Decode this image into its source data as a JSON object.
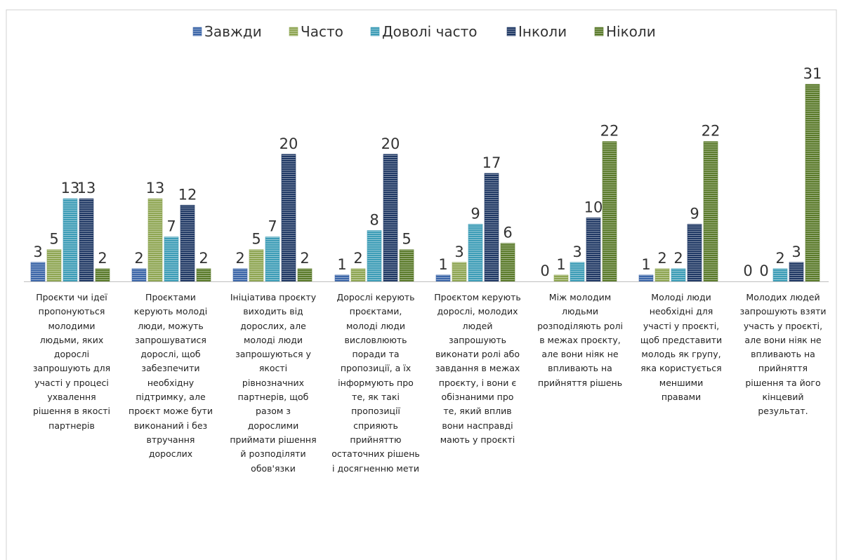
{
  "colors": {
    "axis": "#bfbfbf",
    "frame": "#d0d0d0",
    "label_text": "#333333",
    "series": [
      "#3c66a8",
      "#8ea552",
      "#3c9cb6",
      "#1f3864",
      "#5a7a2a"
    ]
  },
  "chart_data": {
    "type": "bar",
    "title": "",
    "xlabel": "",
    "ylabel": "",
    "ylim": [
      0,
      31
    ],
    "grid": false,
    "legend_position": "top",
    "bar_pattern": "horizontal-stripes",
    "categories": [
      "Проєкти чи ідеї пропонуються молодими людьми, яких дорослі запрошують для участі у процесі ухвалення рішення в якості партнерів",
      "Проєктами керують молоді люди, можуть запрошуватися дорослі, щоб забезпечити необхідну підтримку, але проєкт може бути виконаний і без втручання дорослих",
      "Ініціатива проєкту виходить від дорослих, але молоді люди запрошуються у якості рівнозначних партнерів, щоб разом з дорослими приймати рішення й розподіляти обов'язки",
      "Дорослі керують проєктами, молоді люди висловлюють поради та пропозиції, а їх інформують про те, як такі пропозиції сприяють прийняттю остаточних рішень і досягненню мети",
      "Проєктом керують дорослі, молодих людей запрошують виконати ролі або завдання в межах проєкту, і вони є обізнаними про те, який вплив вони насправді мають у проєкті",
      "Між молодим людьми розподіляють ролі в межах проєкту, але вони ніяк не впливають на прийняття рішень",
      "Молоді люди необхідні для участі у проєкті, щоб представити молодь як групу, яка користується меншими правами",
      "Молодих людей запрошують взяти участь у проєкті, але вони ніяк не впливають на прийняття рішення та його кінцевий результат."
    ],
    "category_lines": [
      [
        "Проєкти чи ідеї",
        "пропонуються",
        "молодими",
        "людьми, яких",
        "дорослі",
        "запрошують для",
        "участі у процесі",
        "ухвалення",
        "рішення в якості",
        "партнерів"
      ],
      [
        "Проєктами",
        "керують молоді",
        "люди, можуть",
        "запрошуватися",
        "дорослі, щоб",
        "забезпечити",
        "необхідну",
        "підтримку, але",
        "проєкт може бути",
        "виконаний і без",
        "втручання",
        "дорослих"
      ],
      [
        "Ініціатива проєкту",
        "виходить від",
        "дорослих, але",
        "молоді люди",
        "запрошуються у",
        "якості",
        "рівнозначних",
        "партнерів, щоб",
        "разом з",
        "дорослими",
        "приймати рішення",
        "й розподіляти",
        "обов'язки"
      ],
      [
        "Дорослі керують",
        "проєктами,",
        "молоді люди",
        "висловлюють",
        "поради та",
        "пропозиції, а їх",
        "інформують про",
        "те, як такі",
        "пропозиції",
        "сприяють",
        "прийняттю",
        "остаточних рішень",
        "і досягненню мети"
      ],
      [
        "Проєктом керують",
        "дорослі, молодих",
        "людей",
        "запрошують",
        "виконати ролі або",
        "завдання в межах",
        "проєкту, і вони є",
        "обізнаними про",
        "те, який вплив",
        "вони насправді",
        "мають у проєкті"
      ],
      [
        "Між молодим",
        "людьми",
        "розподіляють ролі",
        "в межах проєкту,",
        "але вони ніяк не",
        "впливають на",
        "прийняття рішень"
      ],
      [
        "Молоді люди",
        "необхідні для",
        "участі у проєкті,",
        "щоб представити",
        "молодь як групу,",
        "яка користується",
        "меншими",
        "правами"
      ],
      [
        "Молодих людей",
        "запрошують взяти",
        "участь у проєкті,",
        "але вони ніяк не",
        "впливають на",
        "прийняття",
        "рішення та його",
        "кінцевий",
        "результат."
      ]
    ],
    "series": [
      {
        "name": "Завжди",
        "values": [
          3,
          2,
          2,
          1,
          1,
          0,
          1,
          0
        ]
      },
      {
        "name": "Часто",
        "values": [
          5,
          13,
          5,
          2,
          3,
          1,
          2,
          0
        ]
      },
      {
        "name": "Доволі часто",
        "values": [
          13,
          7,
          7,
          8,
          9,
          3,
          2,
          2
        ]
      },
      {
        "name": "Інколи",
        "values": [
          13,
          12,
          20,
          20,
          17,
          10,
          9,
          3
        ]
      },
      {
        "name": "Ніколи",
        "values": [
          2,
          2,
          2,
          5,
          6,
          22,
          22,
          31
        ]
      }
    ]
  }
}
